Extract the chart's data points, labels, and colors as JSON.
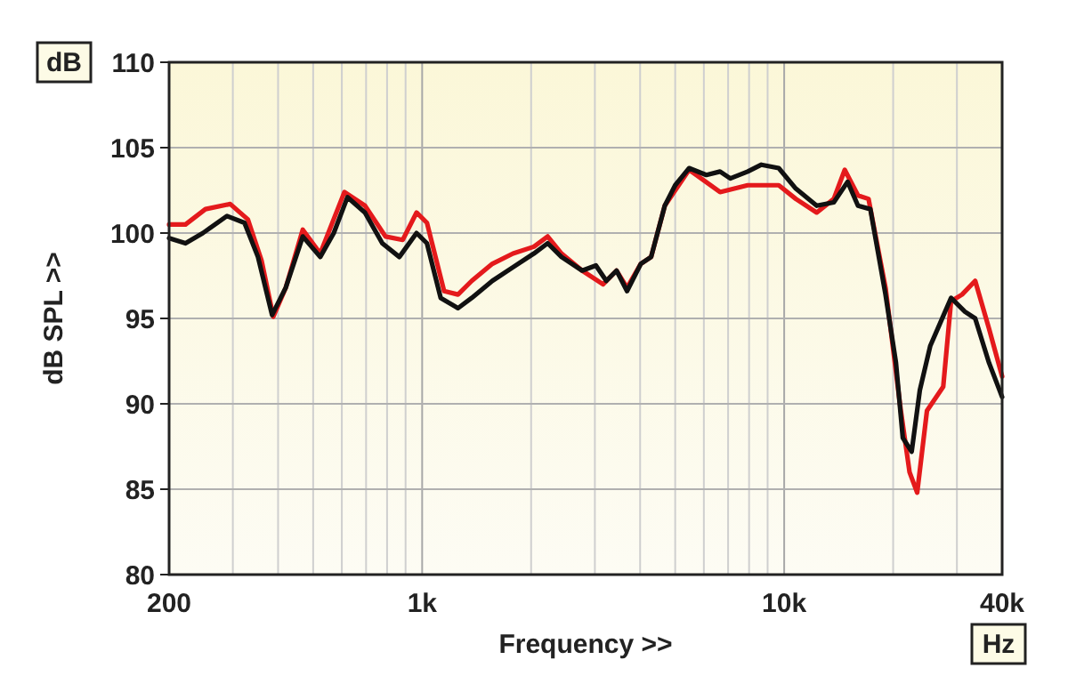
{
  "chart_data": {
    "type": "line",
    "xlabel": "Frequency >>",
    "ylabel": "dB SPL >>",
    "annotations": [
      "dB",
      "Hz"
    ],
    "log": "x",
    "grid": true,
    "line_style": "solid",
    "xlim": [
      200,
      40000
    ],
    "ylim": [
      80,
      110
    ],
    "xticks": [
      {
        "value": 200,
        "label": "200"
      },
      {
        "value": 300,
        "label": null
      },
      {
        "value": 400,
        "label": null
      },
      {
        "value": 500,
        "label": null
      },
      {
        "value": 600,
        "label": null
      },
      {
        "value": 700,
        "label": null
      },
      {
        "value": 800,
        "label": null
      },
      {
        "value": 900,
        "label": null
      },
      {
        "value": 1000,
        "label": "1k"
      },
      {
        "value": 2000,
        "label": null
      },
      {
        "value": 3000,
        "label": null
      },
      {
        "value": 4000,
        "label": null
      },
      {
        "value": 5000,
        "label": null
      },
      {
        "value": 6000,
        "label": null
      },
      {
        "value": 7000,
        "label": null
      },
      {
        "value": 8000,
        "label": null
      },
      {
        "value": 9000,
        "label": null
      },
      {
        "value": 10000,
        "label": "10k"
      },
      {
        "value": 20000,
        "label": null
      },
      {
        "value": 30000,
        "label": null
      },
      {
        "value": 40000,
        "label": "40k"
      }
    ],
    "yticks": [
      80,
      85,
      90,
      95,
      100,
      105,
      110
    ],
    "series": [
      {
        "color": "#e41a1c",
        "x": [
          200,
          222,
          252,
          295,
          330,
          360,
          388,
          420,
          468,
          523,
          610,
          695,
          792,
          884,
          965,
          1031,
          1150,
          1256,
          1371,
          1563,
          1783,
          2035,
          2222,
          2426,
          2767,
          3160,
          3443,
          3681,
          4018,
          4290,
          4680,
          5460,
          6650,
          7930,
          9660,
          10770,
          12300,
          13710,
          14700,
          15990,
          17100,
          19050,
          21000,
          22200,
          23300,
          24800,
          27500,
          28900,
          31000,
          33700,
          36800,
          40000
        ],
        "values": [
          100.5,
          100.5,
          101.4,
          101.7,
          100.8,
          98.4,
          95.1,
          96.8,
          100.2,
          98.8,
          102.4,
          101.6,
          99.8,
          99.6,
          101.2,
          100.6,
          96.6,
          96.4,
          97.2,
          98.2,
          98.8,
          99.2,
          99.8,
          98.8,
          97.8,
          97,
          97.8,
          96.8,
          98.2,
          98.6,
          101.6,
          103.7,
          102.4,
          102.8,
          102.8,
          102,
          101.2,
          102,
          103.7,
          102.2,
          102,
          96.8,
          89.6,
          86,
          84.8,
          89.6,
          91,
          96,
          96.4,
          97.2,
          94.4,
          91.6
        ]
      },
      {
        "color": "#111111",
        "x": [
          200,
          222,
          248,
          289,
          323,
          352,
          385,
          420,
          468,
          523,
          570,
          622,
          695,
          776,
          865,
          965,
          1031,
          1125,
          1256,
          1371,
          1563,
          1783,
          2035,
          2222,
          2426,
          2767,
          3020,
          3226,
          3443,
          3681,
          4018,
          4290,
          4680,
          5000,
          5460,
          6096,
          6650,
          7100,
          7930,
          8650,
          9660,
          10770,
          12300,
          13710,
          14970,
          15990,
          17300,
          19050,
          20360,
          21270,
          22500,
          23700,
          25330,
          27060,
          28900,
          31560,
          33700,
          36800,
          40000
        ],
        "values": [
          99.7,
          99.4,
          100,
          101,
          100.6,
          98.6,
          95.2,
          96.8,
          99.8,
          98.6,
          100,
          102.1,
          101.2,
          99.4,
          98.6,
          100,
          99.4,
          96.2,
          95.6,
          96.2,
          97.2,
          98,
          98.8,
          99.4,
          98.6,
          97.8,
          98.1,
          97.2,
          97.8,
          96.6,
          98.2,
          98.6,
          101.6,
          102.8,
          103.8,
          103.4,
          103.6,
          103.2,
          103.6,
          104,
          103.8,
          102.6,
          101.6,
          101.8,
          103,
          101.6,
          101.4,
          96.4,
          92.4,
          88,
          87.2,
          90.8,
          93.4,
          94.8,
          96.2,
          95.4,
          95,
          92.4,
          90.4
        ]
      }
    ]
  }
}
